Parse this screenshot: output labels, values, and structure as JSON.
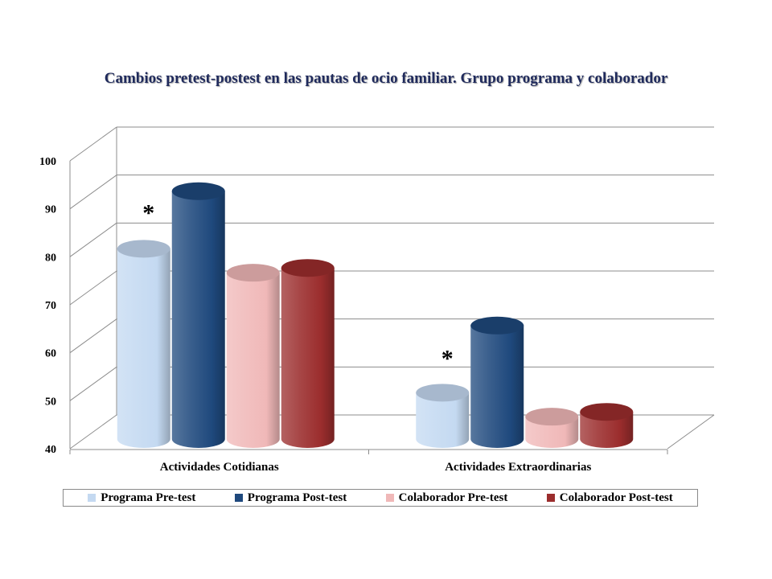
{
  "chart_data": {
    "type": "bar",
    "title": "Cambios pretest-postest en las pautas de ocio familiar. Grupo programa y colaborador",
    "categories": [
      "Actividades Cotidianas",
      "Actividades Extraordinarias"
    ],
    "series": [
      {
        "name": "Programa Pre-test",
        "values": [
          80,
          50
        ],
        "color": "#c4d9f1"
      },
      {
        "name": "Programa Post-test",
        "values": [
          92,
          64
        ],
        "color": "#1f497d"
      },
      {
        "name": "Colaborador Pre-test",
        "values": [
          75,
          45
        ],
        "color": "#f0b8b8"
      },
      {
        "name": "Colaborador Post-test",
        "values": [
          76,
          46
        ],
        "color": "#9b2d2d"
      }
    ],
    "ylim": [
      40,
      100
    ],
    "yticks": [
      "40",
      "50",
      "60",
      "70",
      "80",
      "90",
      "100"
    ],
    "grid": true,
    "legend_position": "bottom",
    "annotations": [
      {
        "text": "*",
        "category": "Actividades Cotidianas"
      },
      {
        "text": "*",
        "category": "Actividades Extraordinarias"
      }
    ]
  }
}
